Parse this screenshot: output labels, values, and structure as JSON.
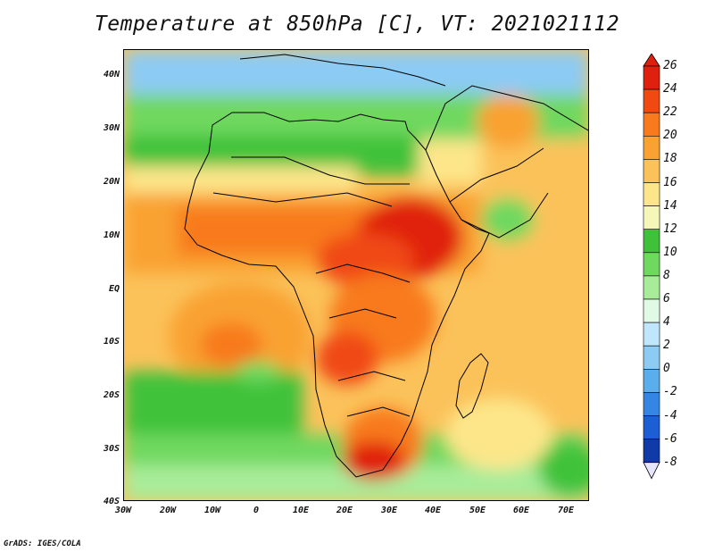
{
  "title": "Temperature at 850hPa [C], VT: 2021021112",
  "credit": "GrADS: IGES/COLA",
  "map": {
    "lon_range": [
      -30,
      75
    ],
    "lat_range": [
      -40,
      45
    ],
    "x_ticks": [
      "30W",
      "20W",
      "10W",
      "0",
      "10E",
      "20E",
      "30E",
      "40E",
      "50E",
      "60E",
      "70E"
    ],
    "y_ticks": [
      "40N",
      "30N",
      "20N",
      "10N",
      "EQ",
      "10S",
      "20S",
      "30S",
      "40S"
    ]
  },
  "colorbar": {
    "levels": [
      "26",
      "24",
      "22",
      "20",
      "18",
      "16",
      "14",
      "12",
      "10",
      "8",
      "6",
      "4",
      "2",
      "0",
      "-2",
      "-4",
      "-6",
      "-8"
    ],
    "colors": [
      "#e0200e",
      "#f04a12",
      "#f87a1c",
      "#f9a233",
      "#fbc25a",
      "#fde68a",
      "#f4f7b8",
      "#3fc23a",
      "#6fd85e",
      "#a8ec9a",
      "#e0fae6",
      "#bfe6fb",
      "#8ccbf4",
      "#5aaeec",
      "#3586e4",
      "#1c5fd4",
      "#0f3aa8",
      "#0a1f6e"
    ],
    "bottom_color": "#e6e6ff"
  }
}
